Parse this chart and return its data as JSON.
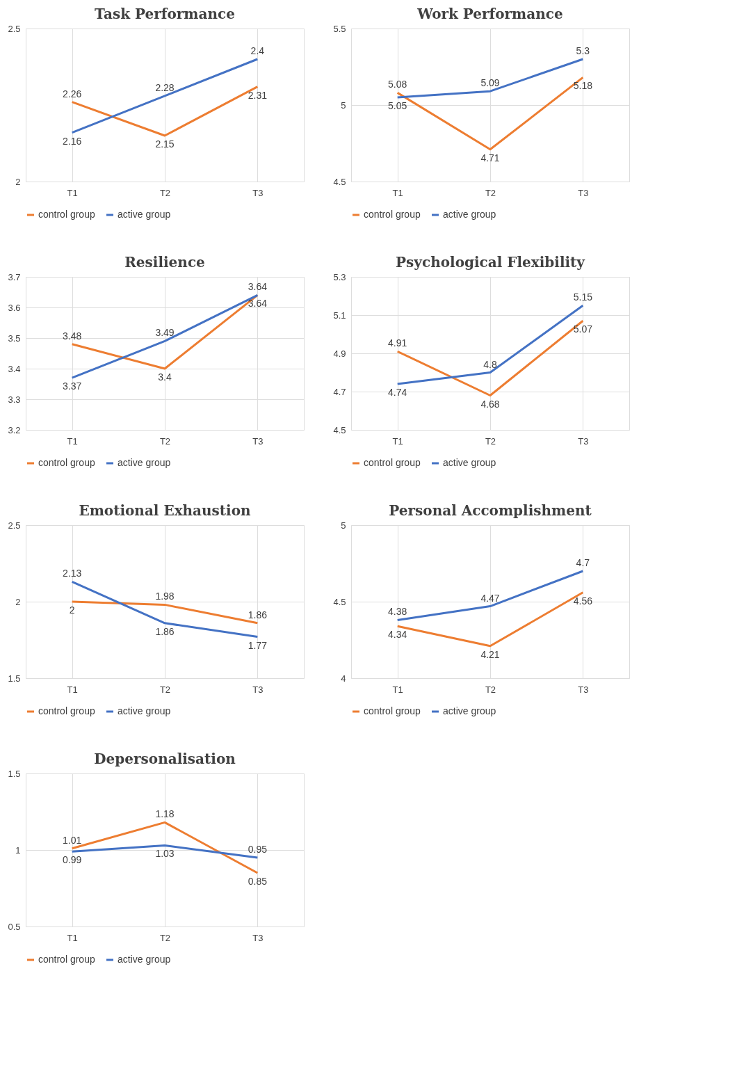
{
  "chart_data": [
    {
      "type": "line",
      "title": "Task Performance",
      "categories": [
        "T1",
        "T2",
        "T3"
      ],
      "ylim": [
        2,
        2.5
      ],
      "yticks": [
        2,
        2.5
      ],
      "grid": true,
      "legend": "bottom",
      "data_labels": true,
      "series": [
        {
          "name": "control group",
          "color": "#ed7d31",
          "values": [
            2.26,
            2.15,
            2.31
          ]
        },
        {
          "name": "active group",
          "color": "#4472c4",
          "values": [
            2.16,
            2.28,
            2.4
          ]
        }
      ]
    },
    {
      "type": "line",
      "title": "Work Performance",
      "categories": [
        "T1",
        "T2",
        "T3"
      ],
      "ylim": [
        4.5,
        5.5
      ],
      "yticks": [
        4.5,
        5,
        5.5
      ],
      "grid": true,
      "legend": "bottom",
      "data_labels": true,
      "series": [
        {
          "name": "control group",
          "color": "#ed7d31",
          "values": [
            5.08,
            4.71,
            5.18
          ]
        },
        {
          "name": "active group",
          "color": "#4472c4",
          "values": [
            5.05,
            5.09,
            5.3
          ]
        }
      ]
    },
    {
      "type": "line",
      "title": "Resilience",
      "categories": [
        "T1",
        "T2",
        "T3"
      ],
      "ylim": [
        3.2,
        3.7
      ],
      "yticks": [
        3.2,
        3.3,
        3.4,
        3.5,
        3.6,
        3.7
      ],
      "grid": true,
      "legend": "bottom",
      "data_labels": true,
      "series": [
        {
          "name": "control group",
          "color": "#ed7d31",
          "values": [
            3.48,
            3.4,
            3.64
          ]
        },
        {
          "name": "active group",
          "color": "#4472c4",
          "values": [
            3.37,
            3.49,
            3.64
          ]
        }
      ]
    },
    {
      "type": "line",
      "title": "Psychological Flexibility",
      "categories": [
        "T1",
        "T2",
        "T3"
      ],
      "ylim": [
        4.5,
        5.3
      ],
      "yticks": [
        4.5,
        4.7,
        4.9,
        5.1,
        5.3
      ],
      "grid": true,
      "legend": "bottom",
      "data_labels": true,
      "series": [
        {
          "name": "control group",
          "color": "#ed7d31",
          "values": [
            4.91,
            4.68,
            5.07
          ]
        },
        {
          "name": "active group",
          "color": "#4472c4",
          "values": [
            4.74,
            4.8,
            5.15
          ]
        }
      ]
    },
    {
      "type": "line",
      "title": "Emotional Exhaustion",
      "categories": [
        "T1",
        "T2",
        "T3"
      ],
      "ylim": [
        1.5,
        2.5
      ],
      "yticks": [
        1.5,
        2,
        2.5
      ],
      "grid": true,
      "legend": "bottom",
      "data_labels": true,
      "series": [
        {
          "name": "control group",
          "color": "#ed7d31",
          "values": [
            2,
            1.98,
            1.86
          ]
        },
        {
          "name": "active group",
          "color": "#4472c4",
          "values": [
            2.13,
            1.86,
            1.77
          ]
        }
      ]
    },
    {
      "type": "line",
      "title": "Personal Accomplishment",
      "categories": [
        "T1",
        "T2",
        "T3"
      ],
      "ylim": [
        4,
        5
      ],
      "yticks": [
        4,
        4.5,
        5
      ],
      "grid": true,
      "legend": "bottom",
      "data_labels": true,
      "series": [
        {
          "name": "control group",
          "color": "#ed7d31",
          "values": [
            4.34,
            4.21,
            4.56
          ]
        },
        {
          "name": "active group",
          "color": "#4472c4",
          "values": [
            4.38,
            4.47,
            4.7
          ]
        }
      ]
    },
    {
      "type": "line",
      "title": "Depersonalisation",
      "categories": [
        "T1",
        "T2",
        "T3"
      ],
      "ylim": [
        0.5,
        1.5
      ],
      "yticks": [
        0.5,
        1,
        1.5
      ],
      "grid": true,
      "legend": "bottom",
      "data_labels": true,
      "series": [
        {
          "name": "control group",
          "color": "#ed7d31",
          "values": [
            1.01,
            1.18,
            0.85
          ]
        },
        {
          "name": "active group",
          "color": "#4472c4",
          "values": [
            0.99,
            1.03,
            0.95
          ]
        }
      ]
    }
  ]
}
